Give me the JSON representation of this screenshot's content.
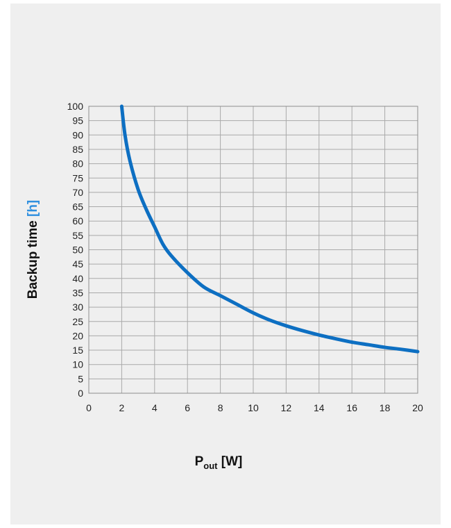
{
  "chart_data": {
    "type": "line",
    "title": "",
    "ylabel": "Backup time",
    "ylabel_unit": "[h]",
    "xlabel_main": "P",
    "xlabel_sub": "out",
    "xlabel_unit": "[W]",
    "xlim": [
      0,
      20
    ],
    "ylim": [
      0,
      100
    ],
    "x_ticks": [
      0,
      2,
      4,
      6,
      8,
      10,
      12,
      14,
      16,
      18,
      20
    ],
    "y_ticks": [
      0,
      5,
      10,
      15,
      20,
      25,
      30,
      35,
      40,
      45,
      50,
      55,
      60,
      65,
      70,
      75,
      80,
      85,
      90,
      95,
      100
    ],
    "x_gridline_step": 2,
    "y_gridline_step": 5,
    "grid": true,
    "legend": "none",
    "colors": {
      "series": "#0d6fc2",
      "ylabel_unit": "#2e8fdf"
    },
    "series": [
      {
        "name": "",
        "x": [
          2,
          2.2,
          2.5,
          3,
          3.5,
          4,
          4.5,
          5,
          6,
          7,
          8,
          9,
          10,
          11,
          12,
          13,
          14,
          15,
          16,
          17,
          18,
          19,
          20
        ],
        "y": [
          100,
          90,
          81,
          71,
          64,
          58,
          52,
          48,
          42,
          37,
          34,
          31,
          28,
          25.5,
          23.5,
          21.8,
          20.3,
          19,
          17.8,
          16.9,
          16,
          15.3,
          14.5
        ]
      }
    ]
  }
}
